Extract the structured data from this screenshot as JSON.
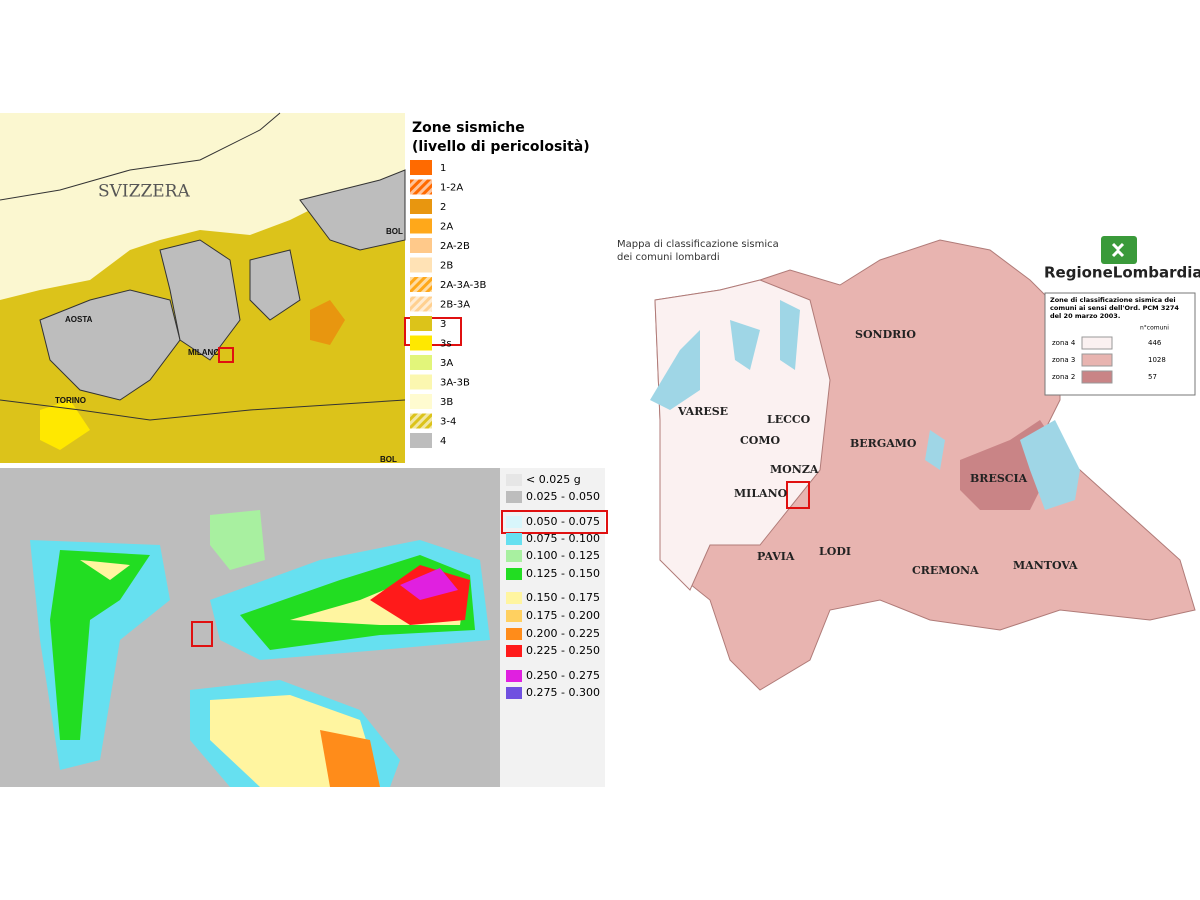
{
  "panels": [
    {
      "labels": [
        "SVIZZERA",
        "AOSTA",
        "MILANO",
        "TORINO",
        "BOL",
        "BOL"
      ],
      "legend": {
        "title": [
          "Zone sismiche",
          "(livello di pericolosità)"
        ],
        "items": [
          {
            "label": "1",
            "color": "#ff6a00"
          },
          {
            "label": "1-2A",
            "color": "#ff6a00",
            "hatch": true
          },
          {
            "label": "2",
            "color": "#e8960f"
          },
          {
            "label": "2A",
            "color": "#ffa81a"
          },
          {
            "label": "2A-2B",
            "color": "#ffc98a"
          },
          {
            "label": "2B",
            "color": "#ffe2b5"
          },
          {
            "label": "2A-3A-3B",
            "color": "#ffa81a",
            "hatch": true
          },
          {
            "label": "2B-3A",
            "color": "#ffd090",
            "hatch": true
          },
          {
            "label": "3",
            "color": "#dcc31a"
          },
          {
            "label": "3s",
            "color": "#ffe800"
          },
          {
            "label": "3A",
            "color": "#e2f57a"
          },
          {
            "label": "3A-3B",
            "color": "#fbf7b0"
          },
          {
            "label": "3B",
            "color": "#fffbd0"
          },
          {
            "label": "3-4",
            "color": "#dcc31a",
            "hatch": true
          },
          {
            "label": "4",
            "color": "#bdbdbd"
          }
        ]
      }
    },
    {
      "legend": {
        "items": [
          {
            "label": "< 0.025 g",
            "color": "#e6e6e6"
          },
          {
            "label": "0.025 - 0.050",
            "color": "#bdbdbd"
          },
          {
            "label": "0.050 - 0.075",
            "color": "#d8f6fb"
          },
          {
            "label": "0.075 - 0.100",
            "color": "#66e0f0"
          },
          {
            "label": "0.100 - 0.125",
            "color": "#a8f0a0"
          },
          {
            "label": "0.125 - 0.150",
            "color": "#22dd22"
          },
          {
            "label": "0.150 - 0.175",
            "color": "#fff5a0"
          },
          {
            "label": "0.175 - 0.200",
            "color": "#ffd060"
          },
          {
            "label": "0.200 - 0.225",
            "color": "#ff8c1a"
          },
          {
            "label": "0.225 - 0.250",
            "color": "#ff1a1a"
          },
          {
            "label": "0.250 - 0.275",
            "color": "#e020e0"
          },
          {
            "label": "0.275 - 0.300",
            "color": "#7050e0"
          }
        ]
      }
    },
    {
      "title": [
        "Mappa  di classificazione sismica",
        "dei comuni lombardi"
      ],
      "brand": "RegioneLombardia",
      "labels": [
        "SONDRIO",
        "VARESE",
        "LECCO",
        "COMO",
        "BERGAMO",
        "MONZA",
        "MILANO",
        "BRESCIA",
        "PAVIA",
        "LODI",
        "CREMONA",
        "MANTOVA"
      ],
      "legend": {
        "title": [
          "Zone di classificazione sismica dei",
          "comuni ai sensi dell'Ord. PCM 3274",
          "del 20 marzo 2003."
        ],
        "count_header": "n°comuni",
        "rows": [
          {
            "label": "zona 4",
            "count": 446,
            "color": "#fbf1f1"
          },
          {
            "label": "zona 3",
            "count": 1028,
            "color": "#e8b4b0"
          },
          {
            "label": "zona 2",
            "count": 57,
            "color": "#c98486"
          }
        ]
      }
    }
  ]
}
